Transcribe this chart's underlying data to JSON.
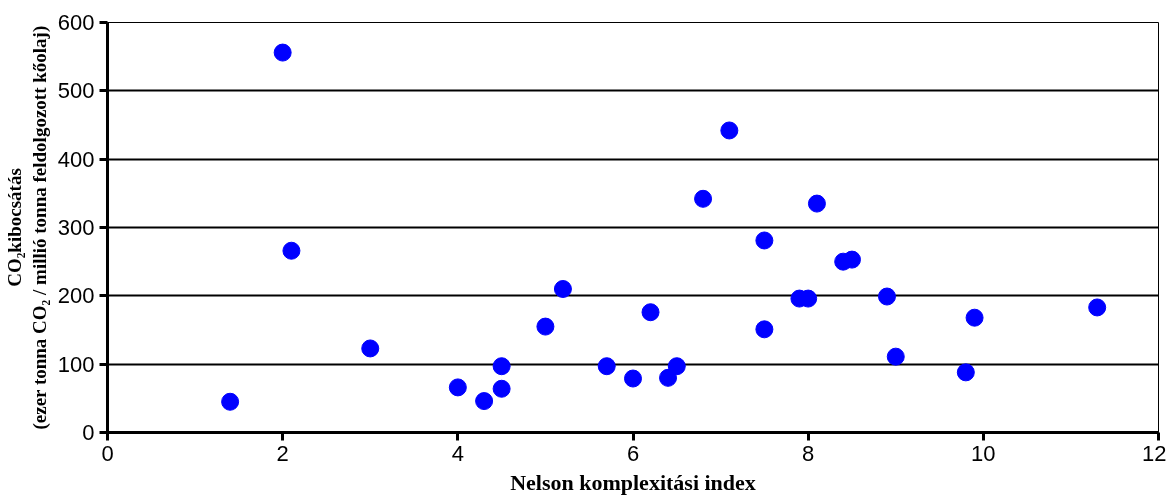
{
  "chart_data": {
    "type": "scatter",
    "xlabel": "Nelson komplexitási index",
    "ylabel": "CO₂kibocsátás\n(ezer tonna CO₂ / millió tonna feldolgozott kőolaj)",
    "x": [
      1.4,
      2.0,
      2.1,
      3.0,
      4.0,
      4.3,
      4.5,
      4.5,
      5.0,
      5.2,
      5.7,
      6.0,
      6.2,
      6.4,
      6.5,
      6.8,
      7.1,
      7.5,
      7.5,
      7.9,
      8.0,
      8.1,
      8.4,
      8.5,
      8.9,
      9.0,
      9.8,
      9.9,
      11.3
    ],
    "series": [
      {
        "color": "#0000ff",
        "values": [
          45,
          556,
          266,
          123,
          66,
          46,
          64,
          97,
          155,
          210,
          97,
          79,
          176,
          80,
          97,
          342,
          442,
          281,
          151,
          196,
          196,
          335,
          250,
          253,
          199,
          111,
          88,
          168,
          183
        ]
      }
    ],
    "xlim": [
      0,
      12
    ],
    "xticks": [
      0,
      2,
      4,
      6,
      8,
      10,
      12
    ],
    "ylim": [
      0,
      600
    ],
    "yticks": [
      0,
      100,
      200,
      300,
      400,
      500,
      600
    ],
    "grid": "y",
    "marker": "circle"
  }
}
